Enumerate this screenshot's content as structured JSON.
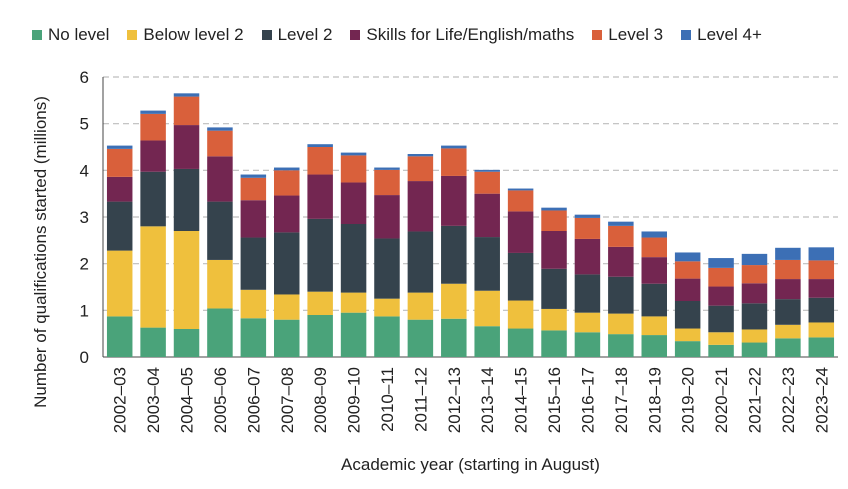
{
  "chart_data": {
    "type": "bar",
    "stacked": true,
    "title": "",
    "xlabel": "Academic year (starting in August)",
    "ylabel": "Number of qualifications started (millions)",
    "ylim": [
      0,
      6
    ],
    "yticks": [
      0,
      1,
      2,
      3,
      4,
      5,
      6
    ],
    "grid": true,
    "legend_position": "top",
    "categories": [
      "2002–03",
      "2003–04",
      "2004–05",
      "2005–06",
      "2006–07",
      "2007–08",
      "2008–09",
      "2009–10",
      "2010–11",
      "2011–12",
      "2012–13",
      "2013–14",
      "2014–15",
      "2015–16",
      "2016–17",
      "2017–18",
      "2018–19",
      "2019–20",
      "2020–21",
      "2021–22",
      "2022–23",
      "2023–24"
    ],
    "series": [
      {
        "name": "No level",
        "color": "#4aa37a",
        "values": [
          0.87,
          0.63,
          0.6,
          1.04,
          0.83,
          0.8,
          0.9,
          0.95,
          0.87,
          0.8,
          0.82,
          0.66,
          0.61,
          0.57,
          0.53,
          0.49,
          0.47,
          0.34,
          0.26,
          0.31,
          0.4,
          0.42
        ]
      },
      {
        "name": "Below level 2",
        "color": "#efc03d",
        "values": [
          1.41,
          2.17,
          2.1,
          1.04,
          0.61,
          0.54,
          0.5,
          0.43,
          0.38,
          0.58,
          0.75,
          0.76,
          0.6,
          0.46,
          0.42,
          0.44,
          0.4,
          0.27,
          0.27,
          0.28,
          0.29,
          0.32
        ]
      },
      {
        "name": "Level 2",
        "color": "#35434d",
        "values": [
          1.05,
          1.17,
          1.33,
          1.25,
          1.12,
          1.33,
          1.56,
          1.47,
          1.29,
          1.31,
          1.24,
          1.15,
          1.02,
          0.86,
          0.82,
          0.79,
          0.7,
          0.59,
          0.57,
          0.56,
          0.55,
          0.53
        ]
      },
      {
        "name": "Skills for Life/English/maths",
        "color": "#732651",
        "values": [
          0.53,
          0.67,
          0.94,
          0.97,
          0.8,
          0.79,
          0.95,
          0.89,
          0.93,
          1.08,
          1.07,
          0.93,
          0.89,
          0.81,
          0.76,
          0.64,
          0.57,
          0.48,
          0.41,
          0.43,
          0.43,
          0.4
        ]
      },
      {
        "name": "Level 3",
        "color": "#d9603b",
        "values": [
          0.6,
          0.57,
          0.61,
          0.55,
          0.48,
          0.54,
          0.59,
          0.58,
          0.54,
          0.53,
          0.59,
          0.47,
          0.45,
          0.44,
          0.45,
          0.45,
          0.42,
          0.37,
          0.4,
          0.39,
          0.41,
          0.4
        ]
      },
      {
        "name": "Level 4+",
        "color": "#3c6fb5",
        "values": [
          0.07,
          0.07,
          0.07,
          0.07,
          0.07,
          0.06,
          0.06,
          0.06,
          0.05,
          0.05,
          0.06,
          0.04,
          0.04,
          0.06,
          0.07,
          0.09,
          0.13,
          0.19,
          0.21,
          0.24,
          0.26,
          0.28
        ]
      }
    ]
  }
}
